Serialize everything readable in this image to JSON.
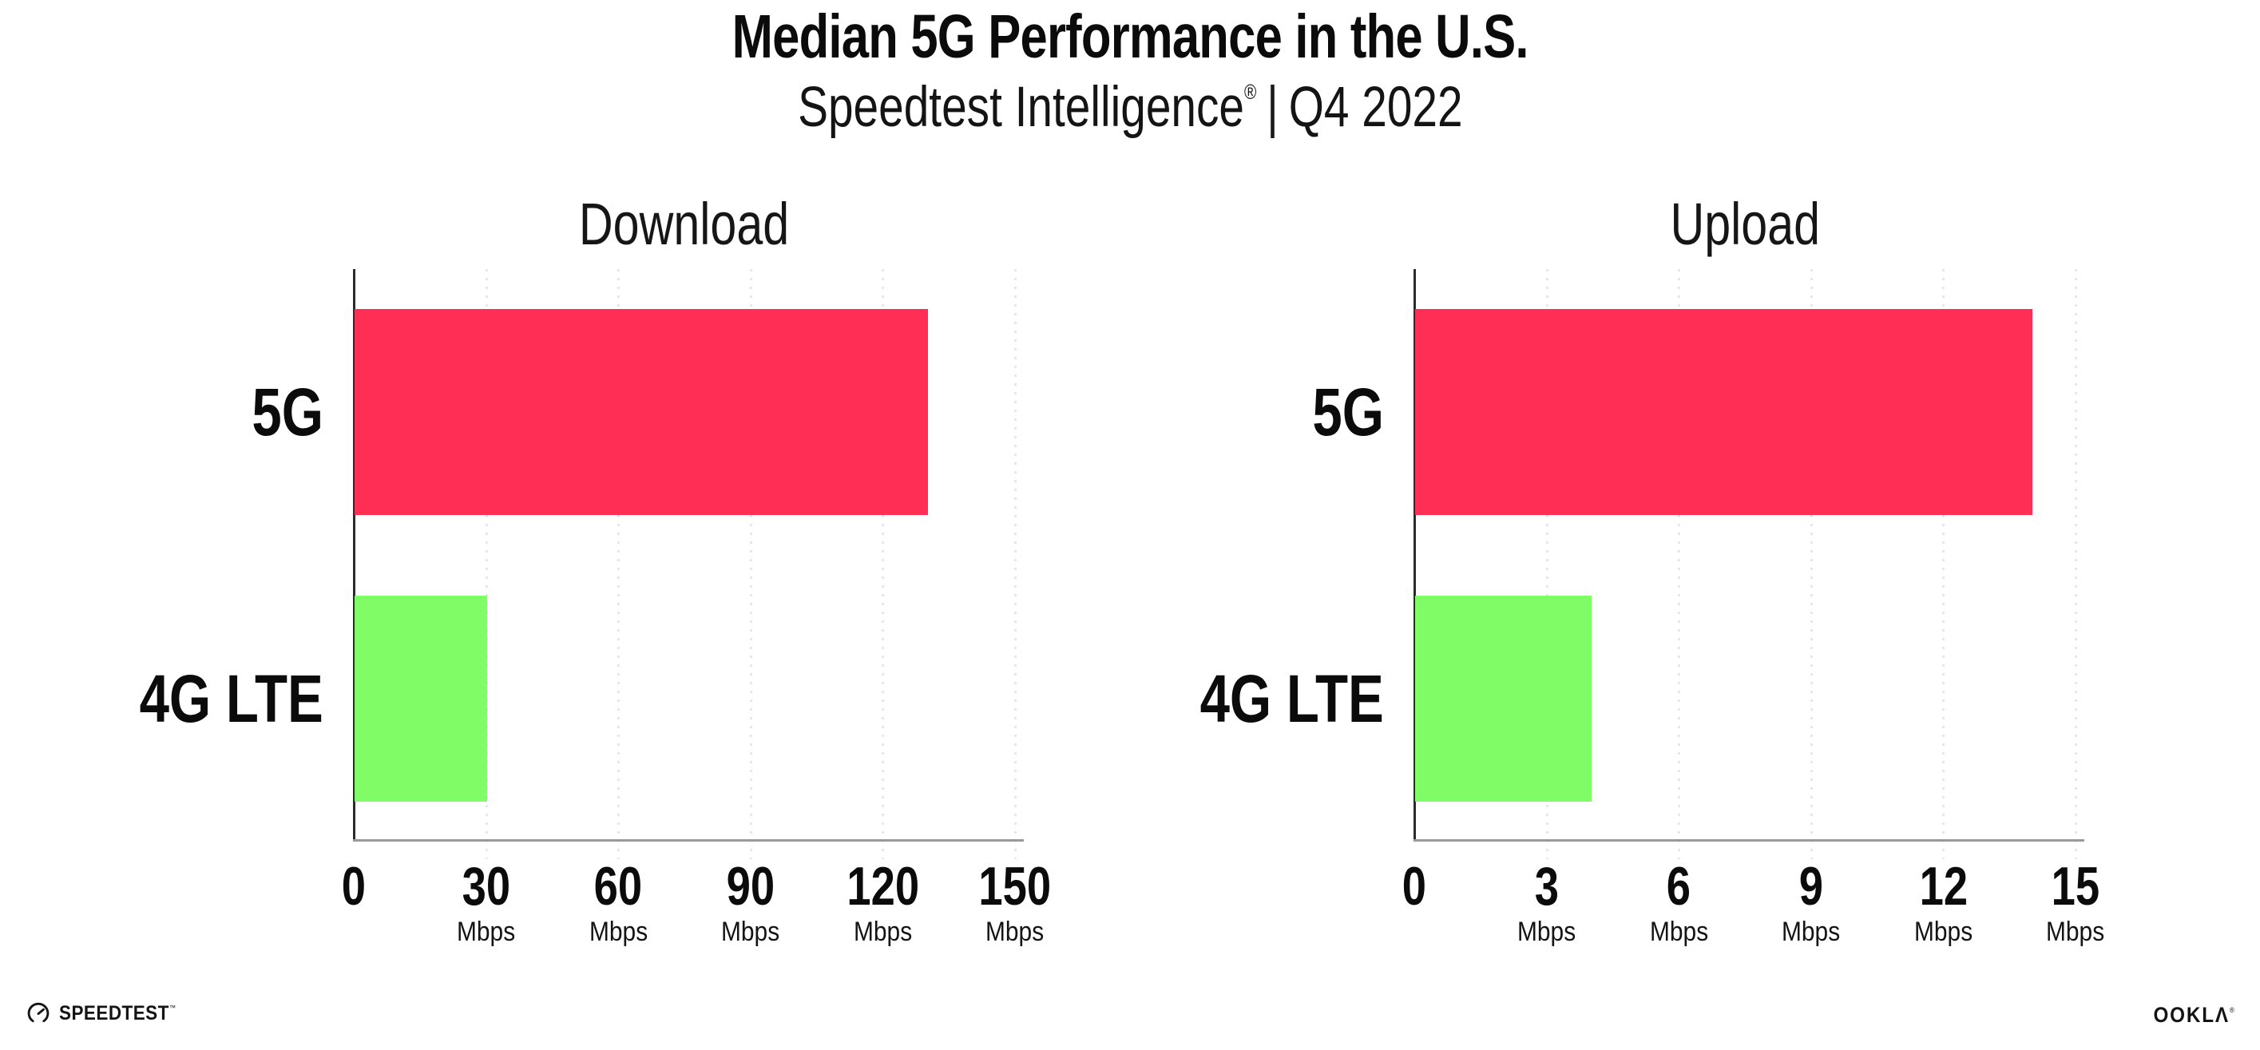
{
  "header": {
    "title": "Median 5G Performance in the U.S.",
    "subtitle": {
      "brand": "Speedtest Intelligence",
      "registered": "®",
      "separator": "|",
      "period": "Q4 2022"
    }
  },
  "chart_data": [
    {
      "type": "bar",
      "orientation": "horizontal",
      "title": "Download",
      "categories": [
        "5G",
        "4G LTE"
      ],
      "values": [
        130,
        30
      ],
      "unit": "Mbps",
      "xlim": [
        0,
        150
      ],
      "ticks": [
        0,
        30,
        60,
        90,
        120,
        150
      ],
      "bar_colors": [
        "#fe2e55",
        "#80fc66"
      ],
      "grid": "dotted-vertical",
      "legend": "none"
    },
    {
      "type": "bar",
      "orientation": "horizontal",
      "title": "Upload",
      "categories": [
        "5G",
        "4G LTE"
      ],
      "values": [
        14,
        4
      ],
      "unit": "Mbps",
      "xlim": [
        0,
        15
      ],
      "ticks": [
        0,
        3,
        6,
        9,
        12,
        15
      ],
      "bar_colors": [
        "#fe2e55",
        "#80fc66"
      ],
      "grid": "dotted-vertical",
      "legend": "none"
    }
  ],
  "colors": {
    "bar_5g": "#fe2e55",
    "bar_4g_lte": "#80fc66",
    "axis_vertical": "#2b2b2b",
    "axis_horizontal": "#9a9a9a",
    "gridline": "#e6e6ef",
    "text": "#0d0d0d",
    "background": "#ffffff"
  },
  "footer": {
    "speedtest_label": "SPEEDTEST",
    "speedtest_tm": "™",
    "speedtest_icon": "gauge-icon",
    "ookla_label": "OOKLΛ",
    "ookla_reg": "®"
  }
}
